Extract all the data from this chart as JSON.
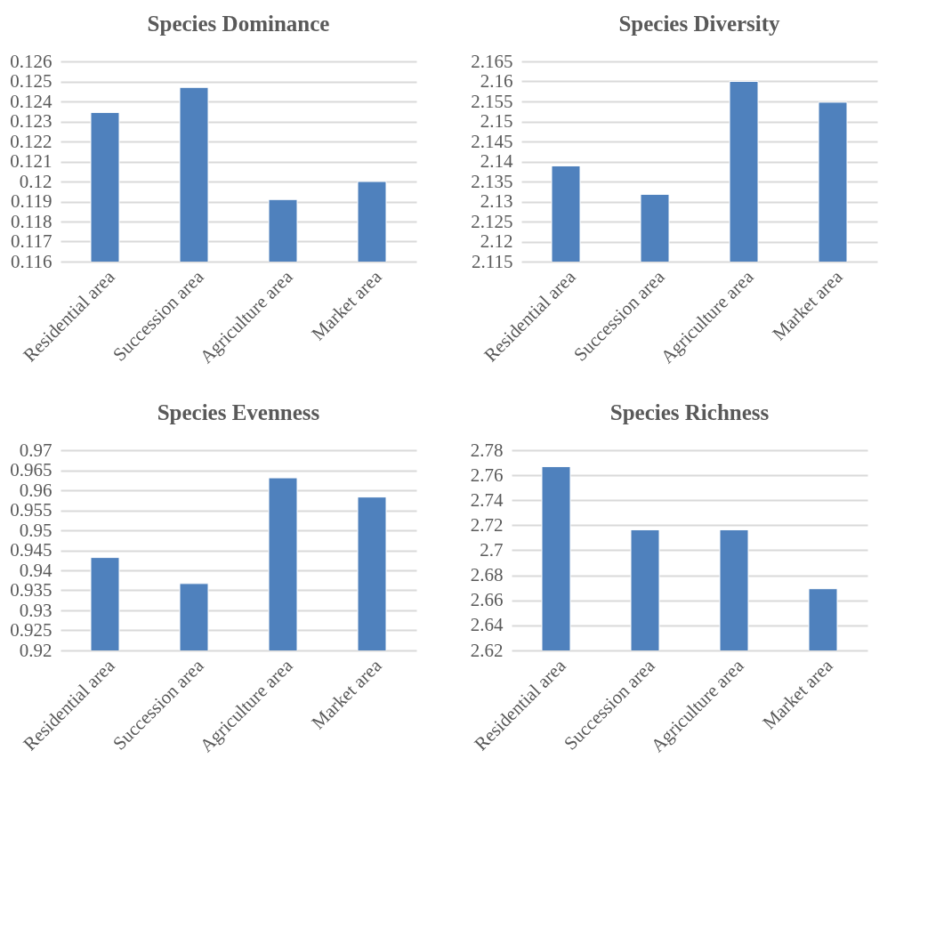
{
  "chart_data": [
    {
      "type": "bar",
      "title": "Species Dominance",
      "categories": [
        "Residential area",
        "Succession area",
        "Agriculture area",
        "Market area"
      ],
      "values": [
        0.12345,
        0.1247,
        0.1191,
        0.12
      ],
      "color": "#4f81bd",
      "ylim": [
        0.116,
        0.126
      ],
      "yticks": [
        0.116,
        0.117,
        0.118,
        0.119,
        0.12,
        0.121,
        0.122,
        0.123,
        0.124,
        0.125,
        0.126
      ],
      "grid": "y"
    },
    {
      "type": "bar",
      "title": "Species Diversity",
      "categories": [
        "Residential area",
        "Succession area",
        "Agriculture area",
        "Market area"
      ],
      "values": [
        2.1389,
        2.1318,
        2.16,
        2.1548
      ],
      "color": "#4f81bd",
      "ylim": [
        2.115,
        2.165
      ],
      "yticks": [
        2.115,
        2.12,
        2.125,
        2.13,
        2.135,
        2.14,
        2.145,
        2.15,
        2.155,
        2.16,
        2.165
      ],
      "grid": "y"
    },
    {
      "type": "bar",
      "title": "Species Evenness",
      "categories": [
        "Residential area",
        "Succession area",
        "Agriculture area",
        "Market area"
      ],
      "values": [
        0.9432,
        0.9367,
        0.9631,
        0.9583
      ],
      "color": "#4f81bd",
      "ylim": [
        0.92,
        0.97
      ],
      "yticks": [
        0.92,
        0.925,
        0.93,
        0.935,
        0.94,
        0.945,
        0.95,
        0.955,
        0.96,
        0.965,
        0.97
      ],
      "grid": "y"
    },
    {
      "type": "bar",
      "title": "Species Richness",
      "categories": [
        "Residential area",
        "Succession area",
        "Agriculture area",
        "Market area"
      ],
      "values": [
        2.7669,
        2.7164,
        2.7164,
        2.6693
      ],
      "color": "#4f81bd",
      "ylim": [
        2.62,
        2.78
      ],
      "yticks": [
        2.62,
        2.64,
        2.66,
        2.68,
        2.7,
        2.72,
        2.74,
        2.76,
        2.78
      ],
      "grid": "y"
    }
  ]
}
